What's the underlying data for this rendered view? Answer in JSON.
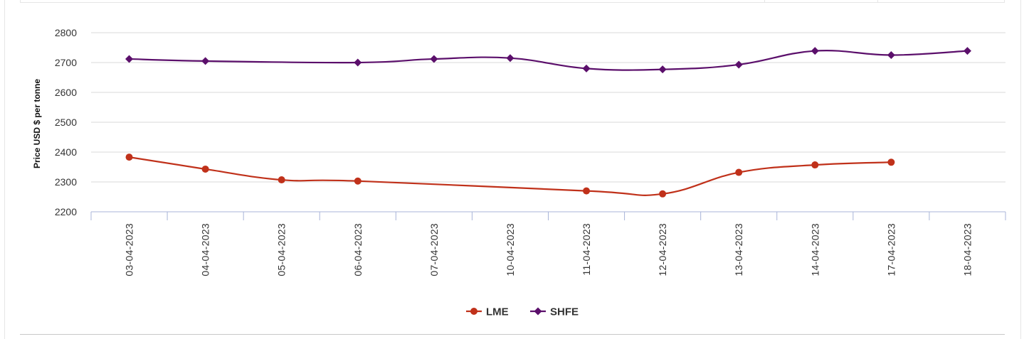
{
  "chart_data": {
    "type": "line",
    "ylabel": "Price USD $ per tonne",
    "xlabel": "",
    "ylim": [
      2200,
      2800
    ],
    "yticks": [
      2200,
      2300,
      2400,
      2500,
      2600,
      2700,
      2800
    ],
    "grid": true,
    "legend_position": "bottom-center",
    "categories": [
      "03-04-2023",
      "04-04-2023",
      "05-04-2023",
      "06-04-2023",
      "07-04-2023",
      "10-04-2023",
      "11-04-2023",
      "12-04-2023",
      "13-04-2023",
      "14-04-2023",
      "17-04-2023",
      "18-04-2023"
    ],
    "series": [
      {
        "name": "LME",
        "color": "#c0311a",
        "marker": "circle",
        "values": [
          2383,
          2343,
          2307,
          2303,
          null,
          null,
          2270,
          2260,
          2332,
          2357,
          2366,
          null
        ]
      },
      {
        "name": "SHFE",
        "color": "#5b0f6b",
        "marker": "diamond",
        "values": [
          2712,
          2705,
          null,
          2700,
          2712,
          2715,
          2680,
          2677,
          2693,
          2739,
          2725,
          2739
        ]
      }
    ]
  }
}
